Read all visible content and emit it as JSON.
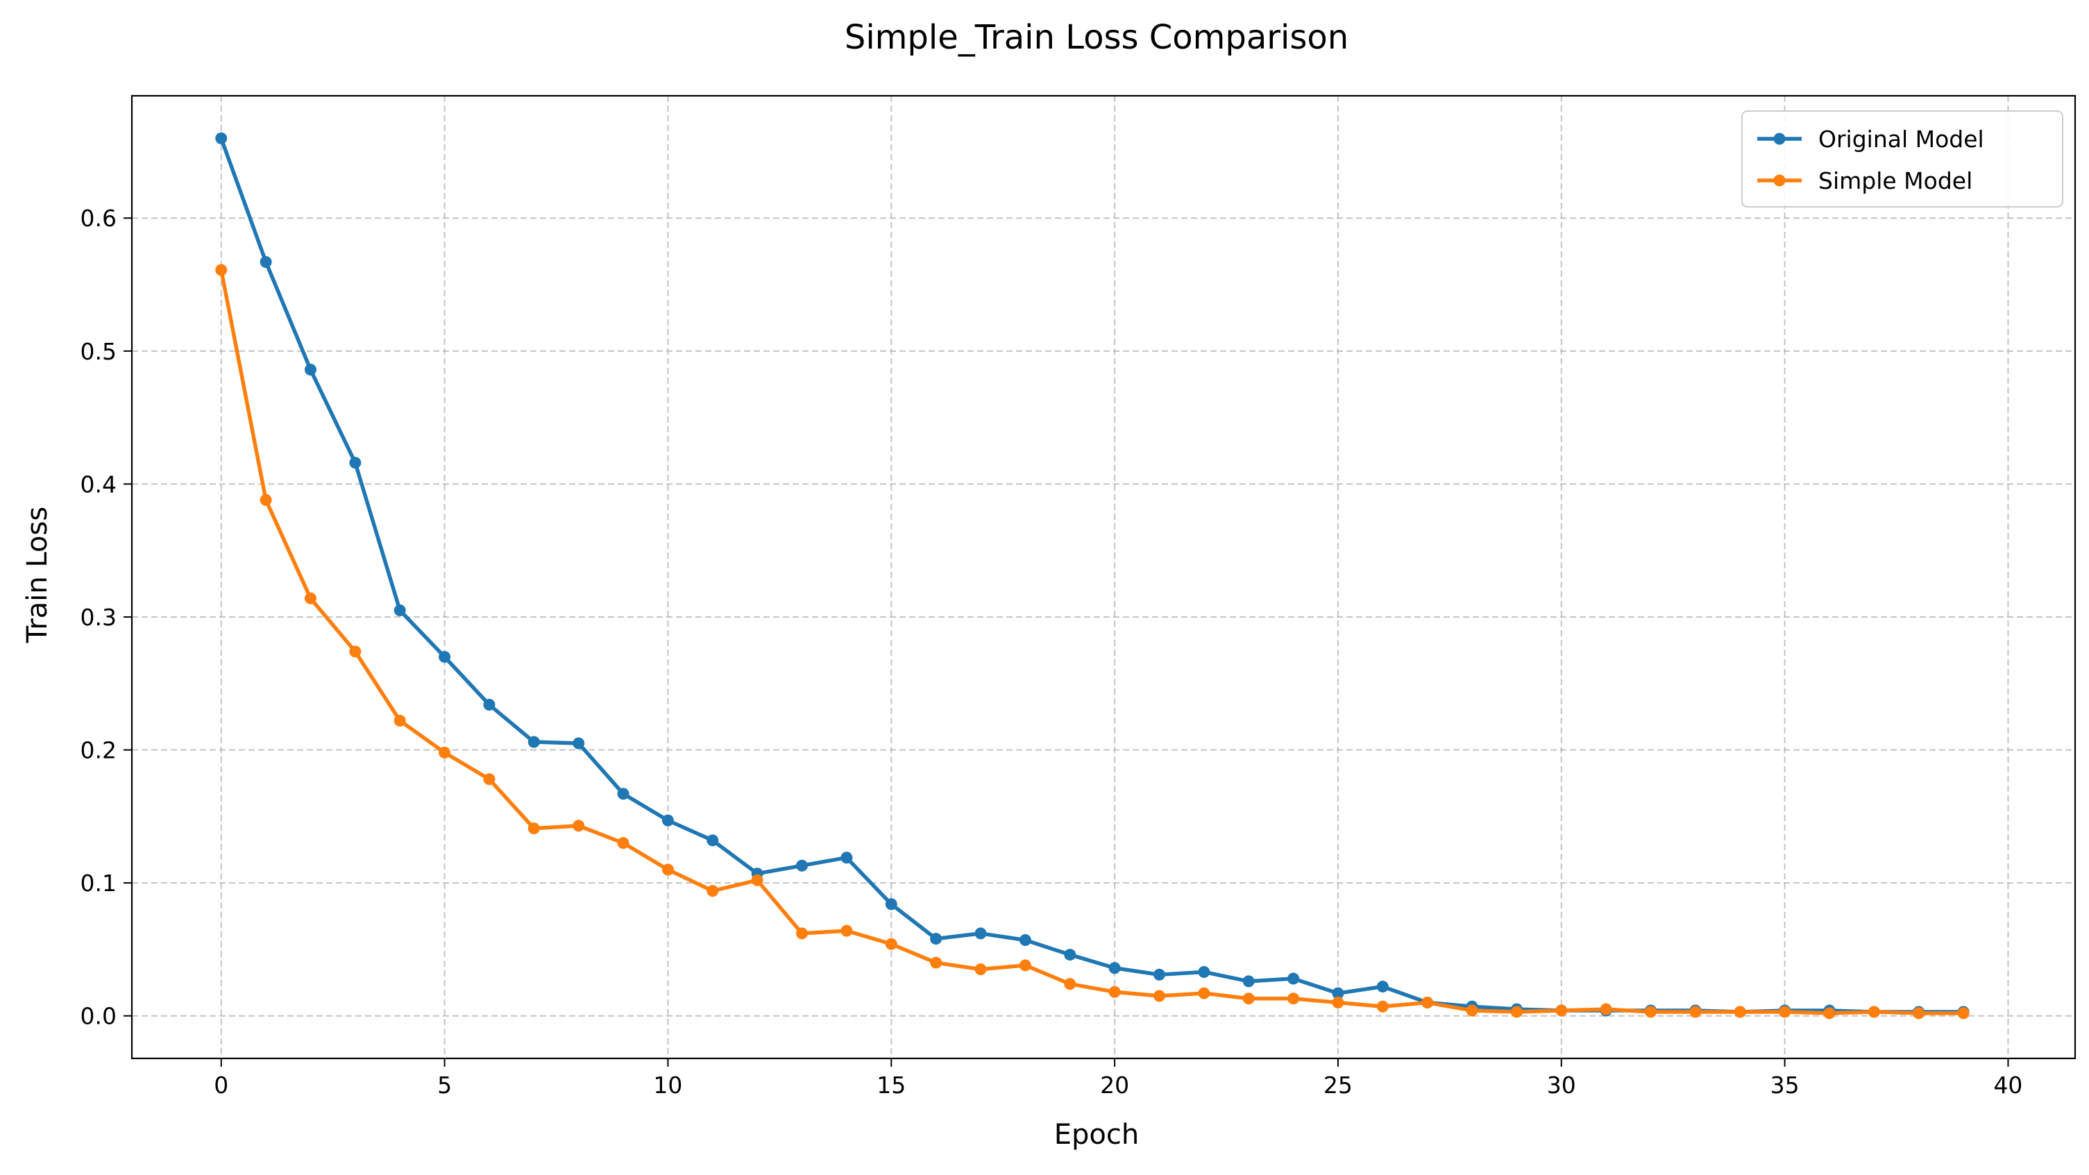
{
  "chart_data": {
    "type": "line",
    "title": "Simple_Train Loss Comparison",
    "xlabel": "Epoch",
    "ylabel": "Train Loss",
    "xlim": [
      -2,
      41.5
    ],
    "ylim": [
      -0.032,
      0.692
    ],
    "xticks": [
      0,
      5,
      10,
      15,
      20,
      25,
      30,
      35,
      40
    ],
    "xtick_labels": [
      "0",
      "5",
      "10",
      "15",
      "20",
      "25",
      "30",
      "35",
      "40"
    ],
    "yticks": [
      0.0,
      0.1,
      0.2,
      0.3,
      0.4,
      0.5,
      0.6
    ],
    "ytick_labels": [
      "0.0",
      "0.1",
      "0.2",
      "0.3",
      "0.4",
      "0.5",
      "0.6"
    ],
    "grid": true,
    "legend_position": "top-right",
    "x": [
      0,
      1,
      2,
      3,
      4,
      5,
      6,
      7,
      8,
      9,
      10,
      11,
      12,
      13,
      14,
      15,
      16,
      17,
      18,
      19,
      20,
      21,
      22,
      23,
      24,
      25,
      26,
      27,
      28,
      29,
      30,
      31,
      32,
      33,
      34,
      35,
      36,
      37,
      38,
      39
    ],
    "series": [
      {
        "name": "Original Model",
        "color": "#1f77b4",
        "values": [
          0.66,
          0.567,
          0.486,
          0.416,
          0.305,
          0.27,
          0.234,
          0.206,
          0.205,
          0.167,
          0.147,
          0.132,
          0.107,
          0.113,
          0.119,
          0.084,
          0.058,
          0.062,
          0.057,
          0.046,
          0.036,
          0.031,
          0.033,
          0.026,
          0.028,
          0.017,
          0.022,
          0.01,
          0.007,
          0.005,
          0.004,
          0.004,
          0.004,
          0.004,
          0.003,
          0.004,
          0.004,
          0.003,
          0.003,
          0.003
        ]
      },
      {
        "name": "Simple Model",
        "color": "#ff7f0e",
        "values": [
          0.561,
          0.388,
          0.314,
          0.274,
          0.222,
          0.198,
          0.178,
          0.141,
          0.143,
          0.13,
          0.11,
          0.094,
          0.102,
          0.062,
          0.064,
          0.054,
          0.04,
          0.035,
          0.038,
          0.024,
          0.018,
          0.015,
          0.017,
          0.013,
          0.013,
          0.01,
          0.007,
          0.01,
          0.004,
          0.003,
          0.004,
          0.005,
          0.003,
          0.003,
          0.003,
          0.003,
          0.002,
          0.003,
          0.002,
          0.002
        ]
      }
    ]
  }
}
